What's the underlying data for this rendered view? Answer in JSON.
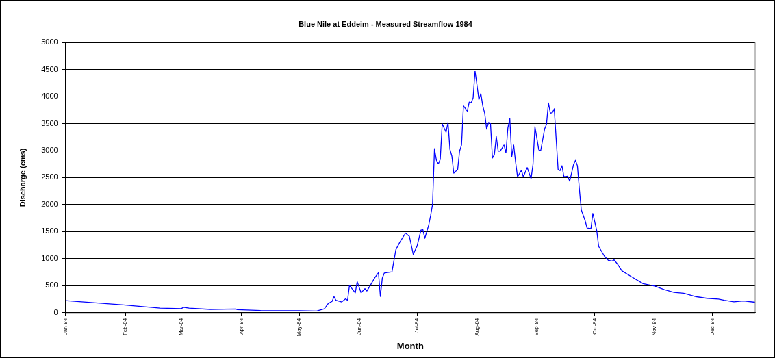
{
  "chart_data": {
    "type": "line",
    "title": "Blue Nile at Eddeim - Measured Streamflow 1984",
    "xlabel": "Month",
    "ylabel": "Discharge (cms)",
    "x": [
      "1984-01-01",
      "1984-01-31",
      "1984-02-19",
      "1984-03-01",
      "1984-03-02",
      "1984-03-05",
      "1984-03-16",
      "1984-03-29",
      "1984-03-30",
      "1984-04-11",
      "1984-05-01",
      "1984-05-10",
      "1984-05-14",
      "1984-05-16",
      "1984-05-18",
      "1984-05-19",
      "1984-05-20",
      "1984-05-23",
      "1984-05-25",
      "1984-05-26",
      "1984-05-27",
      "1984-05-30",
      "1984-05-31",
      "1984-06-02",
      "1984-06-04",
      "1984-06-05",
      "1984-06-07",
      "1984-06-09",
      "1984-06-11",
      "1984-06-12",
      "1984-06-13",
      "1984-06-14",
      "1984-06-18",
      "1984-06-20",
      "1984-06-22",
      "1984-06-25",
      "1984-06-27",
      "1984-06-29",
      "1984-07-01",
      "1984-07-03",
      "1984-07-04",
      "1984-07-05",
      "1984-07-07",
      "1984-07-08",
      "1984-07-09",
      "1984-07-10",
      "1984-07-11",
      "1984-07-12",
      "1984-07-13",
      "1984-07-14",
      "1984-07-16",
      "1984-07-17",
      "1984-07-18",
      "1984-07-19",
      "1984-07-20",
      "1984-07-22",
      "1984-07-23",
      "1984-07-24",
      "1984-07-25",
      "1984-07-27",
      "1984-07-28",
      "1984-07-29",
      "1984-07-30",
      "1984-07-31",
      "1984-08-01",
      "1984-08-02",
      "1984-08-03",
      "1984-08-04",
      "1984-08-05",
      "1984-08-06",
      "1984-08-07",
      "1984-08-08",
      "1984-08-09",
      "1984-08-10",
      "1984-08-11",
      "1984-08-12",
      "1984-08-13",
      "1984-08-15",
      "1984-08-16",
      "1984-08-17",
      "1984-08-18",
      "1984-08-19",
      "1984-08-20",
      "1984-08-21",
      "1984-08-22",
      "1984-08-24",
      "1984-08-25",
      "1984-08-27",
      "1984-08-29",
      "1984-08-30",
      "1984-08-31",
      "1984-09-02",
      "1984-09-03",
      "1984-09-05",
      "1984-09-06",
      "1984-09-07",
      "1984-09-08",
      "1984-09-09",
      "1984-09-10",
      "1984-09-11",
      "1984-09-12",
      "1984-09-13",
      "1984-09-14",
      "1984-09-15",
      "1984-09-17",
      "1984-09-18",
      "1984-09-20",
      "1984-09-21",
      "1984-09-22",
      "1984-09-23",
      "1984-09-24",
      "1984-09-26",
      "1984-09-27",
      "1984-09-29",
      "1984-09-30",
      "1984-10-02",
      "1984-10-03",
      "1984-10-06",
      "1984-10-08",
      "1984-10-10",
      "1984-10-11",
      "1984-10-13",
      "1984-10-15",
      "1984-10-20",
      "1984-10-26",
      "1984-11-01",
      "1984-11-06",
      "1984-11-11",
      "1984-11-16",
      "1984-11-22",
      "1984-11-28",
      "1984-12-04",
      "1984-12-07",
      "1984-12-12",
      "1984-12-17",
      "1984-12-23"
    ],
    "series": [
      {
        "color": "#0000ff",
        "values": [
          223,
          144,
          84,
          74,
          99,
          84,
          60,
          69,
          55,
          40,
          35,
          30,
          70,
          168,
          210,
          297,
          228,
          198,
          257,
          228,
          505,
          366,
          575,
          368,
          445,
          400,
          518,
          641,
          741,
          300,
          641,
          732,
          755,
          1164,
          1300,
          1473,
          1414,
          1082,
          1232,
          1527,
          1536,
          1377,
          1618,
          1797,
          2001,
          3035,
          2822,
          2754,
          2840,
          3498,
          3339,
          3521,
          3022,
          2899,
          2582,
          2650,
          2990,
          3103,
          3829,
          3730,
          3898,
          3884,
          3975,
          4474,
          4215,
          3943,
          4056,
          3829,
          3693,
          3398,
          3521,
          3503,
          2863,
          2922,
          3262,
          2990,
          2990,
          3103,
          2958,
          3421,
          3594,
          2886,
          3103,
          2786,
          2514,
          2636,
          2514,
          2686,
          2480,
          2742,
          3444,
          3014,
          3000,
          3398,
          3489,
          3882,
          3692,
          3701,
          3774,
          3217,
          2652,
          2629,
          2720,
          2516,
          2525,
          2434,
          2742,
          2819,
          2720,
          2290,
          1905,
          1701,
          1566,
          1557,
          1837,
          1520,
          1226,
          1045,
          968,
          955,
          977,
          887,
          774,
          665,
          537,
          491,
          427,
          376,
          358,
          298,
          266,
          252,
          229,
          202,
          216,
          193
        ]
      }
    ],
    "xlim": [
      "1984-01-01",
      "1984-12-23"
    ],
    "xticks": [
      {
        "value": "1984-01-01",
        "label": "Jan-84"
      },
      {
        "value": "1984-02-01",
        "label": "Feb-84"
      },
      {
        "value": "1984-03-01",
        "label": "Mar-84"
      },
      {
        "value": "1984-04-01",
        "label": "Apr-84"
      },
      {
        "value": "1984-05-01",
        "label": "May-84"
      },
      {
        "value": "1984-06-01",
        "label": "Jun-84"
      },
      {
        "value": "1984-07-01",
        "label": "Jul-84"
      },
      {
        "value": "1984-08-01",
        "label": "Aug-84"
      },
      {
        "value": "1984-09-01",
        "label": "Sep-84"
      },
      {
        "value": "1984-10-01",
        "label": "Oct-84"
      },
      {
        "value": "1984-11-01",
        "label": "Nov-84"
      },
      {
        "value": "1984-12-01",
        "label": "Dec-84"
      }
    ],
    "ylim": [
      0,
      5000
    ],
    "yticks": [
      0,
      500,
      1000,
      1500,
      2000,
      2500,
      3000,
      3500,
      4000,
      4500,
      5000
    ],
    "grid": "y",
    "marker": "none",
    "line_style": "solid"
  }
}
